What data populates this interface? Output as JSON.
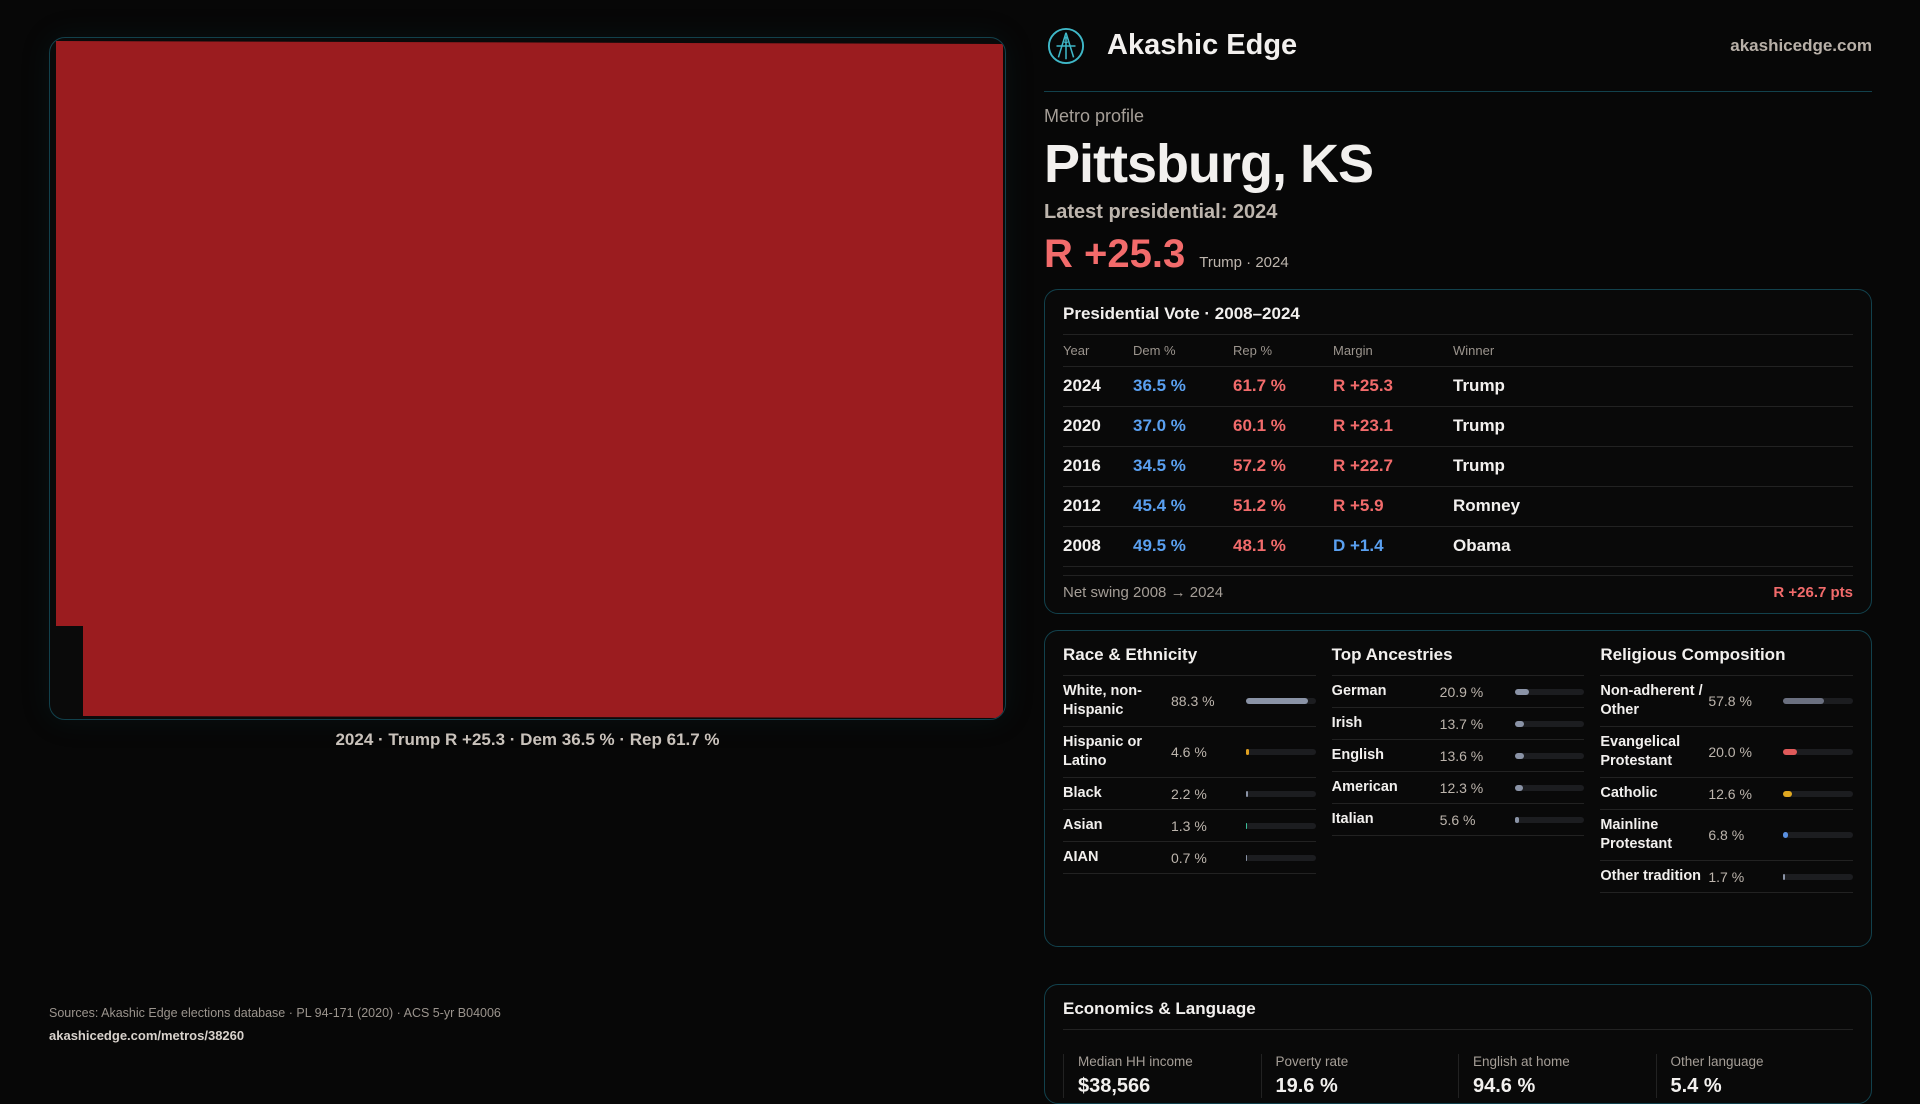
{
  "map": {
    "fill_color": "#9b1c1f",
    "caption": "2024 · Trump R +25.3 · Dem 36.5 % · Rep 61.7 %"
  },
  "header": {
    "brand": "Akashic Edge",
    "site": "akashicedge.com",
    "logo_icon": "akashic-edge-logo"
  },
  "profile": {
    "eyebrow": "Metro profile",
    "city": "Pittsburg, KS",
    "latest": "Latest presidential: 2024",
    "margin": "R +25.3",
    "margin_sub": "Trump · 2024"
  },
  "vote": {
    "title": "Presidential Vote · 2008–2024",
    "headers": [
      "Year",
      "Dem %",
      "Rep %",
      "Margin",
      "Winner"
    ],
    "rows": [
      {
        "year": "2024",
        "dem": "36.5 %",
        "rep": "61.7 %",
        "margin": "R +25.3",
        "winner": "Trump",
        "party": "R"
      },
      {
        "year": "2020",
        "dem": "37.0 %",
        "rep": "60.1 %",
        "margin": "R +23.1",
        "winner": "Trump",
        "party": "R"
      },
      {
        "year": "2016",
        "dem": "34.5 %",
        "rep": "57.2 %",
        "margin": "R +22.7",
        "winner": "Trump",
        "party": "R"
      },
      {
        "year": "2012",
        "dem": "45.4 %",
        "rep": "51.2 %",
        "margin": "R +5.9",
        "winner": "Romney",
        "party": "R"
      },
      {
        "year": "2008",
        "dem": "49.5 %",
        "rep": "48.1 %",
        "margin": "D +1.4",
        "winner": "Obama",
        "party": "D"
      }
    ],
    "swing_label": "Net swing 2008 → 2024",
    "swing_value": "R +26.7 pts"
  },
  "demographics": [
    {
      "title": "Race & Ethnicity",
      "items": [
        {
          "label": "White, non-Hispanic",
          "value": "88.3 %",
          "pct": 88.3,
          "color": "#8a93a6"
        },
        {
          "label": "Hispanic or Latino",
          "value": "4.6 %",
          "pct": 4.6,
          "color": "#e0a020"
        },
        {
          "label": "Black",
          "value": "2.2 %",
          "pct": 2.2,
          "color": "#8a93a6"
        },
        {
          "label": "Asian",
          "value": "1.3 %",
          "pct": 1.3,
          "color": "#3bbf9a"
        },
        {
          "label": "AIAN",
          "value": "0.7 %",
          "pct": 0.7,
          "color": "#8a93a6"
        }
      ]
    },
    {
      "title": "Top Ancestries",
      "items": [
        {
          "label": "German",
          "value": "20.9 %",
          "pct": 20.9,
          "color": "#8a93a6"
        },
        {
          "label": "Irish",
          "value": "13.7 %",
          "pct": 13.7,
          "color": "#8a93a6"
        },
        {
          "label": "English",
          "value": "13.6 %",
          "pct": 13.6,
          "color": "#8a93a6"
        },
        {
          "label": "American",
          "value": "12.3 %",
          "pct": 12.3,
          "color": "#8a93a6"
        },
        {
          "label": "Italian",
          "value": "5.6 %",
          "pct": 5.6,
          "color": "#8a93a6"
        }
      ]
    },
    {
      "title": "Religious Composition",
      "items": [
        {
          "label": "Non-adherent / Other",
          "value": "57.8 %",
          "pct": 57.8,
          "color": "#6b7080"
        },
        {
          "label": "Evangelical Protestant",
          "value": "20.0 %",
          "pct": 20.0,
          "color": "#e05a5a"
        },
        {
          "label": "Catholic",
          "value": "12.6 %",
          "pct": 12.6,
          "color": "#e0a820"
        },
        {
          "label": "Mainline Protestant",
          "value": "6.8 %",
          "pct": 6.8,
          "color": "#5a90e0"
        },
        {
          "label": "Other tradition",
          "value": "1.7 %",
          "pct": 1.7,
          "color": "#8a93a6"
        }
      ]
    }
  ],
  "economics": {
    "title": "Economics & Language",
    "stats": [
      {
        "label": "Median HH income",
        "value": "$38,566"
      },
      {
        "label": "Poverty rate",
        "value": "19.6 %"
      },
      {
        "label": "English at home",
        "value": "94.6 %"
      },
      {
        "label": "Other language",
        "value": "5.4 %"
      }
    ]
  },
  "footer": {
    "sources": "Sources: Akashic Edge elections database · PL 94-171 (2020) · ACS 5-yr B04006",
    "url": "akashicedge.com/metros/38260"
  }
}
